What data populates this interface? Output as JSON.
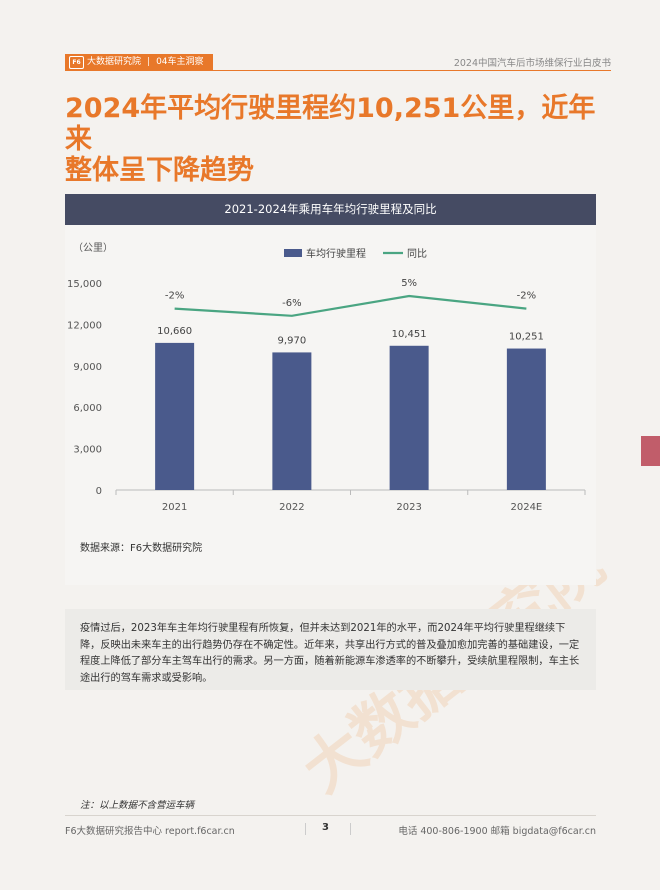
{
  "header": {
    "brand": "大数据研究院",
    "section": "04车主洞察",
    "report_title": "2024中国汽车后市场维保行业白皮书",
    "logo": "F6"
  },
  "headline": {
    "line1": "2024年平均行驶里程约10,251公里，近年来",
    "line2": "整体呈下降趋势"
  },
  "chart": {
    "header_title": "2021-2024年乘用车年均行驶里程及同比",
    "source": "数据来源：F6大数据研究院"
  },
  "chart_data": {
    "type": "bar",
    "title": "2021-2024年乘用车年均行驶里程及同比",
    "ylabel": "（公里）",
    "categories": [
      "2021",
      "2022",
      "2023",
      "2024E"
    ],
    "ylim": [
      0,
      15000
    ],
    "yticks": [
      "0",
      "3,000",
      "6,000",
      "9,000",
      "12,000",
      "15,000"
    ],
    "series": [
      {
        "name": "车均行驶里程",
        "type": "bar",
        "values": [
          10660,
          9970,
          10451,
          10251
        ],
        "labels": [
          "10,660",
          "9,970",
          "10,451",
          "10,251"
        ],
        "color": "#4a5a8c"
      },
      {
        "name": "同比",
        "type": "line",
        "values": [
          -2,
          -6,
          5,
          -2
        ],
        "labels": [
          "-2%",
          "-6%",
          "5%",
          "-2%"
        ],
        "color": "#4aa582"
      }
    ],
    "legend": "top-center",
    "grid": false
  },
  "body_text": "疫情过后，2023年车主年均行驶里程有所恢复，但并未达到2021年的水平，而2024年平均行驶里程继续下降，反映出未来车主的出行趋势仍存在不确定性。近年来，共享出行方式的普及叠加愈加完善的基础建设，一定程度上降低了部分车主驾车出行的需求。另一方面，随着新能源车渗透率的不断攀升，受续航里程限制，车主长途出行的驾车需求或受影响。",
  "note": "注：以上数据不含营运车辆",
  "footer": {
    "left": "F6大数据研究报告中心 report.f6car.cn",
    "page": "3",
    "right": "电话 400-806-1900  邮箱 bigdata@f6car.cn"
  },
  "watermark": "大数据研究院",
  "colors": {
    "accent": "#e8782a",
    "chart_header": "#454b63",
    "bar": "#4a5a8c",
    "line": "#4aa582",
    "side_tab": "#c15d6a"
  }
}
